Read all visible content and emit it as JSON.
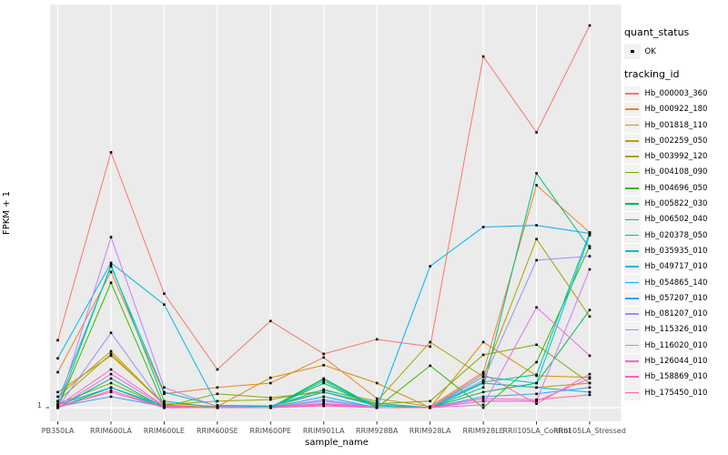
{
  "figure": {
    "page_bg": "#FFFFFF",
    "panel_bg": "#EBEBEB",
    "grid_color": "#FFFFFF",
    "point_color": "#000000",
    "tick_text_color": "#4D4D4D",
    "title_text_color": "#000000",
    "legend_key_bg": "#F2F2F2"
  },
  "legend": {
    "quant_status": {
      "title": "quant_status",
      "items": [
        {
          "label": "OK",
          "shape": "black-square"
        }
      ]
    },
    "tracking_id": {
      "title": "tracking_id"
    }
  },
  "chart_data": {
    "type": "line",
    "title": "",
    "xlabel": "sample_name",
    "ylabel": "FPKM + 1",
    "y_scale": "log10",
    "y_tick_labels": [
      "1"
    ],
    "ylim": [
      1,
      1000
    ],
    "grid": "vertical category gridlines plus baseline at y=1",
    "legend_position": "right",
    "point_shape": "small black square at every sample",
    "categories": [
      "PB350LA",
      "RRIM600LA",
      "RRIM600LE",
      "RRIM600SE",
      "RRIM600PE",
      "RRIM901LA",
      "RRIM928BA",
      "RRIM928LA",
      "RRIM928LE",
      "RRII105LA_Control",
      "RRII105LA_Stressed"
    ],
    "series": [
      {
        "name": "Hb_000003_360",
        "color": "#F8766D",
        "values": [
          3.22,
          83.6,
          7.21,
          1.94,
          4.49,
          2.54,
          3.27,
          2.88,
          440,
          118,
          753
        ]
      },
      {
        "name": "Hb_000922_180",
        "color": "#EA8331",
        "values": [
          1.85,
          10.5,
          1.27,
          1.42,
          1.53,
          2.39,
          1.17,
          1.02,
          1.85,
          47.3,
          20.8
        ]
      },
      {
        "name": "Hb_001818_110",
        "color": "#D89000",
        "values": [
          1.31,
          2.46,
          1.08,
          1.02,
          1.68,
          2.09,
          1.53,
          1.0,
          3.12,
          1.74,
          1.69
        ]
      },
      {
        "name": "Hb_002259_050",
        "color": "#C09B00",
        "values": [
          1.21,
          2.66,
          1.05,
          1.0,
          1.0,
          1.31,
          1.05,
          1.0,
          1.53,
          1.42,
          1.53
        ]
      },
      {
        "name": "Hb_003992_120",
        "color": "#A3A500",
        "values": [
          1.12,
          2.54,
          1.05,
          1.12,
          1.15,
          1.35,
          1.12,
          3.12,
          1.71,
          18.6,
          4.86
        ]
      },
      {
        "name": "Hb_004108_090",
        "color": "#7CAE00",
        "values": [
          1.07,
          1.53,
          1.02,
          1.27,
          1.19,
          1.31,
          1.07,
          1.12,
          2.5,
          2.98,
          1.53
        ]
      },
      {
        "name": "Hb_004696_050",
        "color": "#39B600",
        "values": [
          1.0,
          8.72,
          1.02,
          1.0,
          1.0,
          1.66,
          1.0,
          2.07,
          1.0,
          2.2,
          16.4
        ]
      },
      {
        "name": "Hb_005822_030",
        "color": "#00BB4E",
        "values": [
          1.0,
          1.42,
          1.0,
          1.0,
          1.0,
          1.53,
          1.0,
          1.0,
          1.31,
          1.53,
          5.43
        ]
      },
      {
        "name": "Hb_006502_040",
        "color": "#00BF7D",
        "values": [
          1.0,
          1.66,
          1.0,
          1.0,
          1.0,
          1.64,
          1.0,
          1.0,
          1.42,
          58.1,
          15.9
        ]
      },
      {
        "name": "Hb_020378_050",
        "color": "#00C1A3",
        "values": [
          1.0,
          11.9,
          1.12,
          1.0,
          1.0,
          1.59,
          1.0,
          1.0,
          1.56,
          1.77,
          20.8
        ]
      },
      {
        "name": "Hb_035935_010",
        "color": "#00BFC4",
        "values": [
          1.12,
          11.6,
          1.31,
          1.03,
          1.02,
          1.37,
          1.08,
          1.0,
          1.71,
          1.53,
          19.9
        ]
      },
      {
        "name": "Hb_049717_010",
        "color": "#00BAE0",
        "values": [
          2.35,
          12.3,
          5.97,
          1.04,
          1.03,
          1.31,
          1.03,
          1.0,
          1.53,
          1.42,
          1.31
        ]
      },
      {
        "name": "Hb_054865_140",
        "color": "#00B0F6",
        "values": [
          1.05,
          1.42,
          1.03,
          1.0,
          1.0,
          1.21,
          1.0,
          11.6,
          22.9,
          23.6,
          20.5
        ]
      },
      {
        "name": "Hb_057207_010",
        "color": "#35A2FF",
        "values": [
          1.02,
          1.21,
          1.02,
          1.0,
          1.0,
          1.12,
          1.0,
          1.0,
          1.21,
          1.27,
          1.42
        ]
      },
      {
        "name": "Hb_081207_010",
        "color": "#9590FF",
        "values": [
          1.0,
          3.66,
          1.02,
          1.0,
          1.0,
          1.15,
          1.0,
          1.0,
          1.61,
          12.9,
          13.8
        ]
      },
      {
        "name": "Hb_115326_010",
        "color": "#C77CFF",
        "values": [
          1.0,
          19.2,
          1.42,
          1.02,
          1.0,
          1.12,
          1.0,
          1.0,
          1.12,
          1.12,
          11.0
        ]
      },
      {
        "name": "Hb_116020_010",
        "color": "#E76BF3",
        "values": [
          1.0,
          1.79,
          1.02,
          1.0,
          1.0,
          1.07,
          1.0,
          1.0,
          1.05,
          5.69,
          2.46
        ]
      },
      {
        "name": "Hb_126044_010",
        "color": "#FA62DB",
        "values": [
          1.02,
          1.31,
          1.0,
          1.0,
          1.0,
          1.05,
          1.0,
          1.0,
          1.12,
          1.12,
          1.66
        ]
      },
      {
        "name": "Hb_158869_010",
        "color": "#FF62BC",
        "values": [
          1.03,
          1.94,
          1.03,
          1.0,
          1.0,
          1.08,
          1.0,
          1.0,
          1.17,
          1.15,
          1.25
        ]
      },
      {
        "name": "Hb_175450_010",
        "color": "#FF6A98",
        "values": [
          1.0,
          1.35,
          1.0,
          1.0,
          1.0,
          1.03,
          1.0,
          1.0,
          1.79,
          1.07,
          1.79
        ]
      }
    ]
  }
}
